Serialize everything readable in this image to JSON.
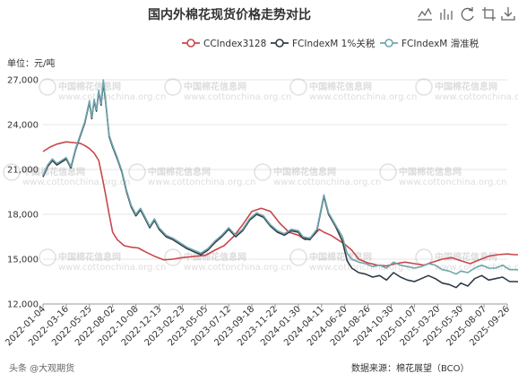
{
  "chart_data": {
    "type": "line",
    "title": "国内外棉花现货价格走势对比",
    "ylabel": "单位：元/吨",
    "ylim": [
      12000,
      27000
    ],
    "yticks": [
      12000,
      15000,
      18000,
      21000,
      24000,
      27000
    ],
    "ytick_labels": [
      "12,000",
      "15,000",
      "18,000",
      "21,000",
      "24,000",
      "27,000"
    ],
    "x_tick_labels": [
      "2022-01-04",
      "2022-03-16",
      "2022-05-25",
      "2022-08-02",
      "2022-10-08",
      "2022-12-13",
      "2023-02-23",
      "2023-05-05",
      "2023-07-12",
      "2023-09-18",
      "2023-11-22",
      "2024-01-30",
      "2024-04-11",
      "2024-06-20",
      "2024-08-26",
      "2024-10-30",
      "2025-01-07",
      "2025-03-20",
      "2025-05-30",
      "2025-08-07",
      "2025-09-26"
    ],
    "legend_position": "top-right",
    "grid": "horizontal",
    "source": "数据来源：棉花展望（BCO）",
    "series": [
      {
        "name": "CCIndex3128",
        "color": "#c9464a",
        "points": [
          [
            0,
            22200
          ],
          [
            0.3,
            22500
          ],
          [
            0.6,
            22700
          ],
          [
            1.0,
            22850
          ],
          [
            1.3,
            22800
          ],
          [
            1.6,
            22750
          ],
          [
            1.8,
            22600
          ],
          [
            2.0,
            22400
          ],
          [
            2.2,
            22100
          ],
          [
            2.4,
            21600
          ],
          [
            2.55,
            20500
          ],
          [
            2.7,
            19300
          ],
          [
            2.85,
            18000
          ],
          [
            3.0,
            16800
          ],
          [
            3.2,
            16300
          ],
          [
            3.5,
            15900
          ],
          [
            3.8,
            15800
          ],
          [
            4.1,
            15750
          ],
          [
            4.4,
            15500
          ],
          [
            4.8,
            15200
          ],
          [
            5.2,
            14950
          ],
          [
            5.6,
            15000
          ],
          [
            6.0,
            15100
          ],
          [
            6.3,
            15150
          ],
          [
            6.6,
            15200
          ],
          [
            7.0,
            15250
          ],
          [
            7.4,
            15600
          ],
          [
            7.8,
            15900
          ],
          [
            8.2,
            16500
          ],
          [
            8.6,
            17300
          ],
          [
            9.0,
            18200
          ],
          [
            9.4,
            18400
          ],
          [
            9.8,
            18200
          ],
          [
            10.2,
            17400
          ],
          [
            10.6,
            16800
          ],
          [
            11.0,
            16600
          ],
          [
            11.3,
            16300
          ],
          [
            11.6,
            16500
          ],
          [
            11.9,
            17000
          ],
          [
            12.1,
            16800
          ],
          [
            12.4,
            16600
          ],
          [
            12.7,
            16300
          ],
          [
            13.0,
            16000
          ],
          [
            13.3,
            15600
          ],
          [
            13.6,
            15000
          ],
          [
            14.0,
            14750
          ],
          [
            14.4,
            14600
          ],
          [
            14.8,
            14550
          ],
          [
            15.2,
            14700
          ],
          [
            15.6,
            14800
          ],
          [
            16.0,
            14700
          ],
          [
            16.4,
            14600
          ],
          [
            16.8,
            14800
          ],
          [
            17.2,
            15000
          ],
          [
            17.6,
            15100
          ],
          [
            18.0,
            14900
          ],
          [
            18.4,
            14700
          ],
          [
            18.8,
            14950
          ],
          [
            19.2,
            15200
          ],
          [
            19.6,
            15300
          ],
          [
            20.0,
            15350
          ],
          [
            20.3,
            15300
          ],
          [
            20.6,
            15300
          ],
          [
            21.0,
            15050
          ]
        ]
      },
      {
        "name": "FCIndexM 1%关税",
        "color": "#2f3a44",
        "points": [
          [
            0,
            20500
          ],
          [
            0.2,
            21200
          ],
          [
            0.4,
            21600
          ],
          [
            0.6,
            21300
          ],
          [
            0.8,
            21500
          ],
          [
            1.0,
            21700
          ],
          [
            1.2,
            21100
          ],
          [
            1.4,
            22300
          ],
          [
            1.6,
            23200
          ],
          [
            1.8,
            24100
          ],
          [
            2.0,
            25500
          ],
          [
            2.1,
            24400
          ],
          [
            2.2,
            25600
          ],
          [
            2.3,
            24900
          ],
          [
            2.4,
            26200
          ],
          [
            2.5,
            25300
          ],
          [
            2.6,
            26800
          ],
          [
            2.7,
            25500
          ],
          [
            2.85,
            23200
          ],
          [
            3.0,
            22500
          ],
          [
            3.2,
            21700
          ],
          [
            3.4,
            20800
          ],
          [
            3.6,
            19500
          ],
          [
            3.8,
            18500
          ],
          [
            4.0,
            17900
          ],
          [
            4.2,
            18300
          ],
          [
            4.4,
            17700
          ],
          [
            4.6,
            17100
          ],
          [
            4.8,
            17600
          ],
          [
            5.0,
            17000
          ],
          [
            5.3,
            16500
          ],
          [
            5.6,
            16300
          ],
          [
            5.9,
            16000
          ],
          [
            6.2,
            15700
          ],
          [
            6.5,
            15500
          ],
          [
            6.8,
            15300
          ],
          [
            7.1,
            15600
          ],
          [
            7.4,
            16100
          ],
          [
            7.7,
            16500
          ],
          [
            8.0,
            17000
          ],
          [
            8.3,
            16500
          ],
          [
            8.6,
            16900
          ],
          [
            8.9,
            17600
          ],
          [
            9.2,
            18000
          ],
          [
            9.5,
            17800
          ],
          [
            9.8,
            17200
          ],
          [
            10.1,
            16800
          ],
          [
            10.4,
            16600
          ],
          [
            10.7,
            16900
          ],
          [
            11.0,
            16800
          ],
          [
            11.2,
            16400
          ],
          [
            11.5,
            16300
          ],
          [
            11.8,
            16900
          ],
          [
            12.1,
            19200
          ],
          [
            12.3,
            18000
          ],
          [
            12.6,
            17200
          ],
          [
            12.9,
            16200
          ],
          [
            13.1,
            14900
          ],
          [
            13.3,
            14400
          ],
          [
            13.6,
            14100
          ],
          [
            13.9,
            14000
          ],
          [
            14.2,
            13800
          ],
          [
            14.5,
            13900
          ],
          [
            14.8,
            13600
          ],
          [
            15.1,
            14100
          ],
          [
            15.4,
            13800
          ],
          [
            15.7,
            13600
          ],
          [
            16.0,
            13500
          ],
          [
            16.3,
            13700
          ],
          [
            16.6,
            13900
          ],
          [
            16.9,
            13700
          ],
          [
            17.2,
            13400
          ],
          [
            17.5,
            13300
          ],
          [
            17.8,
            13100
          ],
          [
            18.0,
            13400
          ],
          [
            18.3,
            13200
          ],
          [
            18.6,
            13700
          ],
          [
            18.9,
            13900
          ],
          [
            19.2,
            13600
          ],
          [
            19.5,
            13700
          ],
          [
            19.8,
            13800
          ],
          [
            20.1,
            13500
          ],
          [
            20.4,
            13500
          ],
          [
            20.7,
            13400
          ],
          [
            21.0,
            13300
          ]
        ]
      },
      {
        "name": "FCIndexM 滑准税",
        "color": "#6fa5ad",
        "points": [
          [
            0,
            20600
          ],
          [
            0.2,
            21300
          ],
          [
            0.4,
            21700
          ],
          [
            0.6,
            21400
          ],
          [
            0.8,
            21600
          ],
          [
            1.0,
            21800
          ],
          [
            1.2,
            21200
          ],
          [
            1.4,
            22400
          ],
          [
            1.6,
            23300
          ],
          [
            1.8,
            24200
          ],
          [
            2.0,
            25600
          ],
          [
            2.1,
            24500
          ],
          [
            2.2,
            25700
          ],
          [
            2.3,
            25000
          ],
          [
            2.4,
            26300
          ],
          [
            2.5,
            25400
          ],
          [
            2.6,
            27000
          ],
          [
            2.7,
            25600
          ],
          [
            2.85,
            23300
          ],
          [
            3.0,
            22600
          ],
          [
            3.2,
            21800
          ],
          [
            3.4,
            20900
          ],
          [
            3.6,
            19600
          ],
          [
            3.8,
            18600
          ],
          [
            4.0,
            18000
          ],
          [
            4.2,
            18400
          ],
          [
            4.4,
            17800
          ],
          [
            4.6,
            17200
          ],
          [
            4.8,
            17700
          ],
          [
            5.0,
            17100
          ],
          [
            5.3,
            16600
          ],
          [
            5.6,
            16400
          ],
          [
            5.9,
            16100
          ],
          [
            6.2,
            15800
          ],
          [
            6.5,
            15600
          ],
          [
            6.8,
            15400
          ],
          [
            7.1,
            15700
          ],
          [
            7.4,
            16200
          ],
          [
            7.7,
            16600
          ],
          [
            8.0,
            17100
          ],
          [
            8.3,
            16600
          ],
          [
            8.6,
            17000
          ],
          [
            8.9,
            17700
          ],
          [
            9.2,
            18100
          ],
          [
            9.5,
            17900
          ],
          [
            9.8,
            17300
          ],
          [
            10.1,
            16900
          ],
          [
            10.4,
            16700
          ],
          [
            10.7,
            17000
          ],
          [
            11.0,
            16900
          ],
          [
            11.2,
            16500
          ],
          [
            11.5,
            16400
          ],
          [
            11.8,
            17000
          ],
          [
            12.1,
            19300
          ],
          [
            12.3,
            18100
          ],
          [
            12.6,
            17300
          ],
          [
            12.9,
            16500
          ],
          [
            13.1,
            15400
          ],
          [
            13.3,
            15000
          ],
          [
            13.6,
            14800
          ],
          [
            13.9,
            14700
          ],
          [
            14.2,
            14500
          ],
          [
            14.5,
            14600
          ],
          [
            14.8,
            14400
          ],
          [
            15.1,
            14800
          ],
          [
            15.4,
            14600
          ],
          [
            15.7,
            14500
          ],
          [
            16.0,
            14400
          ],
          [
            16.3,
            14500
          ],
          [
            16.6,
            14700
          ],
          [
            16.9,
            14600
          ],
          [
            17.2,
            14300
          ],
          [
            17.5,
            14200
          ],
          [
            17.8,
            14000
          ],
          [
            18.0,
            14200
          ],
          [
            18.3,
            14100
          ],
          [
            18.6,
            14400
          ],
          [
            18.9,
            14600
          ],
          [
            19.2,
            14400
          ],
          [
            19.5,
            14400
          ],
          [
            19.8,
            14600
          ],
          [
            20.1,
            14300
          ],
          [
            20.4,
            14300
          ],
          [
            20.7,
            14200
          ],
          [
            21.0,
            14100
          ]
        ]
      }
    ]
  },
  "watermark": {
    "main": "中国棉花信息网",
    "sub": "www.cottonchina.org.cn",
    "brand": "头条 @大观期货"
  },
  "toolbar": [
    "line-chart-icon",
    "bar-chart-icon",
    "refresh-icon",
    "crop-icon",
    "download-icon"
  ]
}
